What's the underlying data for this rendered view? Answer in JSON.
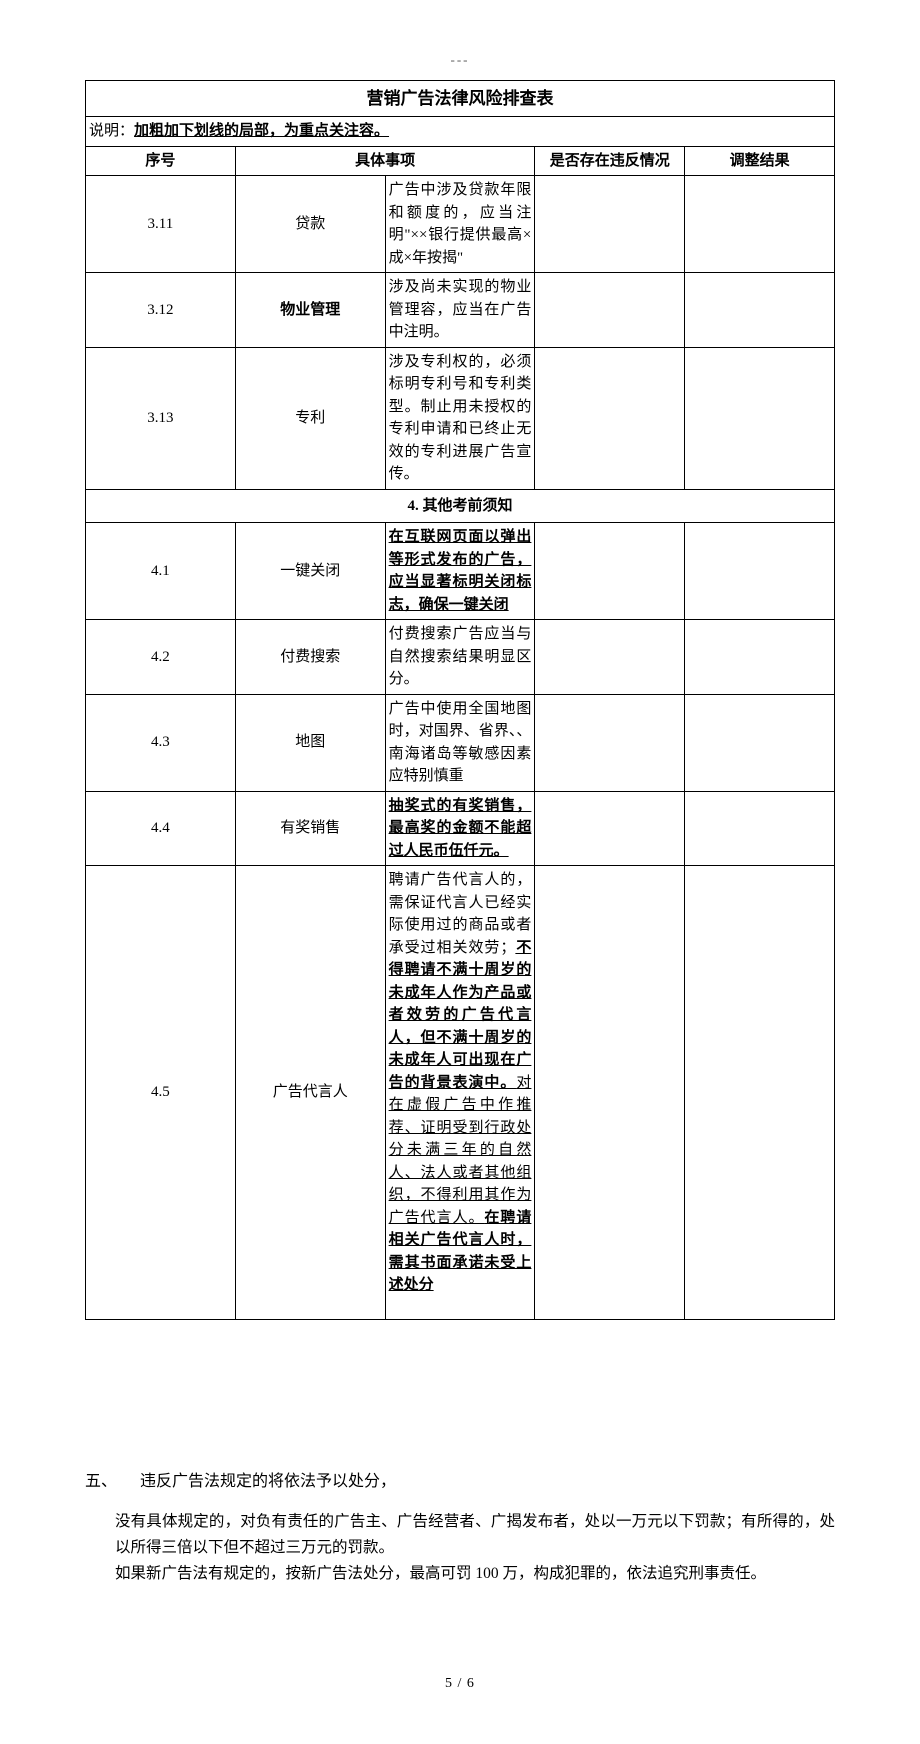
{
  "top_dashes": "---",
  "table": {
    "title": "营销广告法律风险排查表",
    "note_prefix": "说明：",
    "note_text": "加粗加下划线的局部，为重点关注容。",
    "headers": {
      "seq": "序号",
      "item": "具体事项",
      "violation": "是否存在违反情况",
      "adjust": "调整结果"
    },
    "rows": [
      {
        "seq": "3.11",
        "cat": "贷款",
        "desc_segments": [
          {
            "t": "广告中涉及贷款年限和额度的，应当注明\"××银行提供最高×成×年按揭\"",
            "style": ""
          }
        ]
      },
      {
        "seq": "3.12",
        "cat": "物业管理",
        "cat_bold": true,
        "desc_segments": [
          {
            "t": "涉及尚未实现的物业管理容，应当在广告中注明。",
            "style": ""
          }
        ]
      },
      {
        "seq": "3.13",
        "cat": "专利",
        "desc_segments": [
          {
            "t": "涉及专利权的，必须标明专利号和专利类型。制止用未授权的专利申请和已终止无效的专利进展广告宣传。",
            "style": ""
          }
        ]
      }
    ],
    "section_header": "4. 其他考前须知",
    "rows2": [
      {
        "seq": "4.1",
        "cat": "一键关闭",
        "desc_segments": [
          {
            "t": "在互联网页面以弹出等形式发布的广告，应当显著标明关闭标志，确保一键关闭",
            "style": "bu"
          }
        ]
      },
      {
        "seq": "4.2",
        "cat": "付费搜索",
        "desc_segments": [
          {
            "t": "付费搜索广告应当与自然搜索结果明显区分。",
            "style": ""
          }
        ]
      },
      {
        "seq": "4.3",
        "cat": "地图",
        "desc_segments": [
          {
            "t": "广告中使用全国地图时，对国界、省界、、南海诸岛等敏感因素应特别慎重",
            "style": ""
          }
        ]
      },
      {
        "seq": "4.4",
        "cat": "有奖销售",
        "desc_segments": [
          {
            "t": "抽奖式的有奖销售，最高奖的金额不能超过人民币伍仟元。",
            "style": "bu"
          }
        ]
      },
      {
        "seq": "4.5",
        "cat": "广告代言人",
        "pad_bottom": true,
        "desc_segments": [
          {
            "t": "聘请广告代言人的，需保证代言人已经实际使用过的商品或者承受过相关效劳；",
            "style": ""
          },
          {
            "t": "不得聘请不满十周岁的未成年人作为产品或者效劳的广告代言人，但不满十周岁的未成年人可出现在广告的背景表演中。",
            "style": "bu"
          },
          {
            "t": "对在虚假广告中作推荐、证明受到行政处分未满三年的自然人、法人或者其他组织，不得利用其作为广告代言人。",
            "style": "u"
          },
          {
            "t": "在聘请相关广告代言人时，需其书面承诺未受上述处分",
            "style": "bu"
          }
        ]
      }
    ]
  },
  "section5": {
    "num": "五、",
    "title": "违反广告法规定的将依法予以处分，",
    "p1": "没有具体规定的，对负有责任的广告主、广告经营者、广揭发布者，处以一万元以下罚款；有所得的，处以所得三倍以下但不超过三万元的罚款。",
    "p2": "如果新广告法有规定的，按新广告法处分，最高可罚 100 万，构成犯罪的，依法追究刑事责任。"
  },
  "footer": "5 / 6"
}
